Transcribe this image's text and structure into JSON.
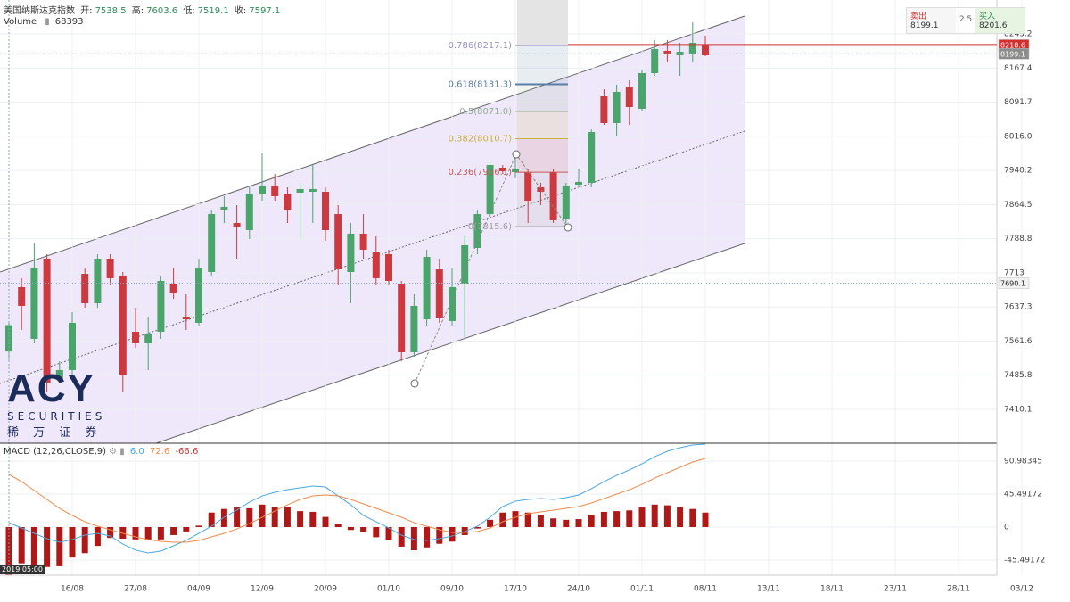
{
  "header": {
    "symbol": "美国纳斯达克指数",
    "open_label": "开:",
    "open": 7538.5,
    "high_label": "高:",
    "high": 7603.6,
    "low_label": "低:",
    "low": 7519.1,
    "close_label": "收:",
    "close": 7597.1,
    "volume_label": "Volume",
    "volume": 68393
  },
  "trade_panel": {
    "sell_label": "卖出",
    "sell": 8199.1,
    "spread": 2.5,
    "buy_label": "买入",
    "buy": 8201.6
  },
  "logo": {
    "brand": "ACY",
    "line1": "SECURITIES",
    "line2": "稀 万 证 券"
  },
  "time_tag": "2019 05:00",
  "chart_data": {
    "type": "candlestick",
    "categories": [
      null,
      null,
      null,
      null,
      null,
      "16/08",
      null,
      null,
      null,
      null,
      "27/08",
      null,
      null,
      null,
      null,
      "04/09",
      null,
      null,
      null,
      null,
      "12/09",
      null,
      null,
      null,
      null,
      "20/09",
      null,
      null,
      null,
      null,
      "01/10",
      null,
      null,
      null,
      null,
      "09/10",
      null,
      null,
      null,
      null,
      "17/10",
      null,
      null,
      null,
      null,
      "24/10",
      null,
      null,
      null,
      null,
      "01/11",
      null,
      null,
      null,
      null,
      "08/11",
      null,
      null,
      null,
      null,
      "13/11",
      null,
      null,
      null,
      null,
      "18/11",
      null,
      null,
      null,
      null,
      "23/11",
      null,
      null,
      null,
      null,
      "28/11",
      null,
      null,
      null,
      null,
      "03/12"
    ],
    "open": [
      7538.5,
      7681.2,
      7566.4,
      7744.5,
      7477.3,
      7497.1,
      7710.8,
      7645.5,
      7744.5,
      7704.9,
      7582.2,
      7556.5,
      7582.2,
      7689.1,
      7615.9,
      7602.0,
      7714.8,
      7851.4,
      7823.6,
      7807.8,
      7887.0,
      7906.8,
      7887.0,
      7890.9,
      7892.9,
      7892.9,
      7843.4,
      7714.8,
      7799.9,
      7760.3,
      7754.4,
      7689.1,
      7536.7,
      7609.9,
      7720.7,
      7606.0,
      7689.1,
      7768.2,
      7843.4,
      7946.3,
      7936.5,
      7936.5,
      7902.8,
      7936.5,
      7833.5,
      7908.7,
      7912.7,
      8104.7,
      8045.3,
      8126.4,
      8077.0,
      8156.1,
      8205.6,
      8195.7,
      8199.7,
      8219.4,
      null,
      null,
      null,
      null,
      null,
      null,
      null,
      null,
      null,
      null,
      null,
      null,
      null,
      null,
      null,
      null,
      null,
      null,
      null,
      null,
      null,
      null,
      null,
      null,
      null
    ],
    "high": [
      7603.6,
      7701.0,
      7780.1,
      7754.4,
      7516.9,
      7625.7,
      7724.7,
      7754.4,
      7754.4,
      7714.8,
      7635.6,
      7615.9,
      7704.9,
      7724.7,
      7665.3,
      7744.5,
      7853.3,
      7883.0,
      7863.2,
      7902.8,
      7978.0,
      7932.5,
      7902.8,
      7912.7,
      7952.3,
      7902.8,
      7863.2,
      7823.6,
      7843.4,
      7794.0,
      7764.3,
      7695.0,
      7665.3,
      7764.3,
      7744.5,
      7724.7,
      7794.0,
      7853.3,
      7962.2,
      7952.3,
      7972.1,
      7942.4,
      7912.7,
      7942.4,
      7912.7,
      7942.4,
      8031.4,
      8120.5,
      8130.4,
      8140.3,
      8164.0,
      8229.3,
      8229.3,
      8223.4,
      8268.9,
      8239.2,
      null,
      null,
      null,
      null,
      null,
      null,
      null,
      null,
      null,
      null,
      null,
      null,
      null,
      null,
      null,
      null,
      null,
      null,
      null,
      null,
      null,
      null,
      null,
      null,
      null
    ],
    "low": [
      7519.1,
      7586.2,
      7556.5,
      7447.6,
      7467.4,
      7487.2,
      7635.6,
      7635.6,
      7685.1,
      7447.6,
      7546.6,
      7497.1,
      7566.4,
      7655.4,
      7586.2,
      7596.1,
      7704.9,
      7823.6,
      7744.5,
      7788.0,
      7873.1,
      7873.1,
      7823.6,
      7788.0,
      7823.6,
      7784.1,
      7685.1,
      7645.5,
      7744.5,
      7685.1,
      7685.1,
      7516.9,
      7526.8,
      7596.1,
      7602.0,
      7596.1,
      7570.3,
      7754.4,
      7839.5,
      7932.5,
      7922.6,
      7823.6,
      7863.2,
      7823.6,
      7823.6,
      7902.8,
      7902.8,
      8041.3,
      8017.6,
      8041.3,
      8071.0,
      8150.2,
      8179.9,
      8150.2,
      8179.9,
      8193.7,
      null,
      null,
      null,
      null,
      null,
      null,
      null,
      null,
      null,
      null,
      null,
      null,
      null,
      null,
      null,
      null,
      null,
      null,
      null,
      null,
      null,
      null,
      null,
      null,
      null
    ],
    "close": [
      7597.1,
      7639.6,
      7724.7,
      7467.4,
      7497.1,
      7602.0,
      7645.5,
      7744.5,
      7701.0,
      7487.2,
      7556.5,
      7576.3,
      7695.0,
      7669.3,
      7609.9,
      7724.7,
      7843.4,
      7859.3,
      7813.8,
      7887.0,
      7906.8,
      7883.0,
      7853.3,
      7898.9,
      7898.9,
      7807.8,
      7720.7,
      7799.9,
      7764.3,
      7701.0,
      7695.0,
      7536.7,
      7639.6,
      7748.4,
      7611.9,
      7681.2,
      7774.2,
      7843.4,
      7952.3,
      7938.4,
      7942.4,
      7873.1,
      7892.9,
      7829.6,
      7906.8,
      7914.7,
      8025.5,
      8045.3,
      8114.6,
      8080.9,
      8156.1,
      8209.6,
      8199.7,
      8203.6,
      8223.4,
      8195.7,
      null,
      null,
      null,
      null,
      null,
      null,
      null,
      null,
      null,
      null,
      null,
      null,
      null,
      null,
      null,
      null,
      null,
      null,
      null,
      null,
      null,
      null,
      null,
      null,
      null
    ],
    "up_color": "#4ba46c",
    "down_color": "#cc3a3f",
    "ylim": [
      7334.8,
      8318.4
    ],
    "yticks": [
      8243.2,
      8167.4,
      8091.7,
      {
        "value": 8016.0,
        "label": "8016.0"
      },
      7940.2,
      7864.5,
      7788.8,
      7713.0,
      7637.3,
      7561.6,
      7485.8,
      7410.1
    ],
    "grid": true,
    "price_tags": {
      "values": [
        8218.6,
        8199.1,
        7690.1
      ],
      "colors": [
        "#d32f2f",
        "#8c8c8c",
        "#f2f2f2"
      ],
      "text_colors": [
        "#ffffff",
        "#ffffff",
        "#222222"
      ],
      "line_styles": [
        "solid",
        "dotted",
        "dotted"
      ]
    },
    "fib_levels": [
      {
        "value": 8217.1,
        "label": "0.786(8217.1)"
      },
      {
        "value": 8131.3,
        "label": "0.618(8131.3)"
      },
      {
        "value": 8071.0,
        "label": "0.5(8071.0)"
      },
      {
        "value": 8010.7,
        "label": "0.382(8010.7)"
      },
      {
        "value": 7936.1,
        "label": "0.236(7936.1)"
      },
      {
        "value": 7815.6,
        "label": "0(7815.6)"
      }
    ],
    "fib_colors": [
      "#9a8fc6",
      "#5a7ea6",
      "#8fae8f",
      "#c9b13e",
      "#c65959",
      "#a0a0a0"
    ],
    "macd": {
      "title": "MACD (12,26,CLOSE,9)",
      "legend_values": [
        {
          "value": 6.0,
          "label": "6.0"
        },
        72.6,
        -66.6
      ],
      "legend_colors": [
        "#4aa8dd",
        "#f08a4b",
        "#c0392b"
      ],
      "ylim": [
        -66.4,
        115.6
      ],
      "yticks": [
        90.98345,
        45.49172,
        0,
        -45.49172
      ],
      "histogram": {
        "color": "#b01818",
        "values": [
          -66.6,
          -50,
          -52,
          -55,
          -54,
          -42,
          -36,
          -26,
          -15,
          -16,
          -17,
          -18,
          -17,
          -11,
          -6,
          2,
          20,
          25,
          27,
          26,
          31,
          28,
          27,
          22,
          21,
          14,
          4,
          -4,
          -7,
          -14,
          -18,
          -27,
          -32,
          -28,
          -23,
          -20,
          -11,
          -2,
          10,
          20,
          22,
          20,
          17,
          12,
          10,
          11,
          17,
          21,
          22,
          23,
          27,
          31,
          30,
          27,
          25,
          20,
          null,
          null,
          null,
          null,
          null,
          null,
          null,
          null,
          null,
          null,
          null,
          null,
          null,
          null,
          null,
          null,
          null,
          null,
          null,
          null,
          null,
          null,
          null,
          null,
          null
        ]
      },
      "macd_line": {
        "color": "#4aa8dd",
        "values": [
          6.0,
          -1.2,
          -8.6,
          -16.0,
          -20.9,
          -17.2,
          -11.1,
          -8.6,
          -12.3,
          -23.4,
          -31.9,
          -35.7,
          -33.2,
          -25.8,
          -18.4,
          -8.6,
          1.2,
          13.5,
          23.4,
          34.4,
          43.0,
          48.0,
          51.6,
          54.1,
          56.6,
          55.3,
          43.0,
          30.7,
          16.0,
          7.4,
          -1.2,
          -11.1,
          -17.2,
          -18.4,
          -16.0,
          -12.3,
          -6.1,
          1.2,
          13.5,
          28.3,
          35.7,
          38.1,
          39.3,
          38.1,
          40.6,
          44.3,
          52.9,
          62.7,
          71.3,
          78.7,
          87.3,
          97.1,
          104.5,
          109.4,
          113.1,
          114.3,
          null,
          null,
          null,
          null,
          null,
          null,
          null,
          null,
          null,
          null,
          null,
          null,
          null,
          null,
          null,
          null,
          null,
          null,
          null,
          null,
          null,
          null,
          null,
          null,
          null
        ]
      },
      "signal_line": {
        "color": "#f08a4b",
        "values": [
          72.6,
          62.7,
          50.4,
          38.1,
          25.8,
          16.0,
          7.4,
          1.2,
          -3.7,
          -8.6,
          -13.5,
          -17.2,
          -19.7,
          -20.9,
          -20.9,
          -18.4,
          -13.5,
          -8.6,
          -2.5,
          4.9,
          13.5,
          22.1,
          30.7,
          38.1,
          43.0,
          44.3,
          43.0,
          38.1,
          32.0,
          25.8,
          19.7,
          13.5,
          6.1,
          1.2,
          -3.7,
          -7.4,
          -7.4,
          -6.1,
          -1.2,
          7.4,
          13.5,
          18.4,
          20.9,
          23.4,
          25.8,
          28.3,
          33.2,
          39.3,
          45.5,
          51.6,
          59.0,
          67.6,
          75.0,
          82.4,
          89.8,
          94.7,
          null,
          null,
          null,
          null,
          null,
          null,
          null,
          null,
          null,
          null,
          null,
          null,
          null,
          null,
          null,
          null,
          null,
          null,
          null,
          null,
          null,
          null,
          null,
          null,
          null
        ]
      }
    }
  }
}
